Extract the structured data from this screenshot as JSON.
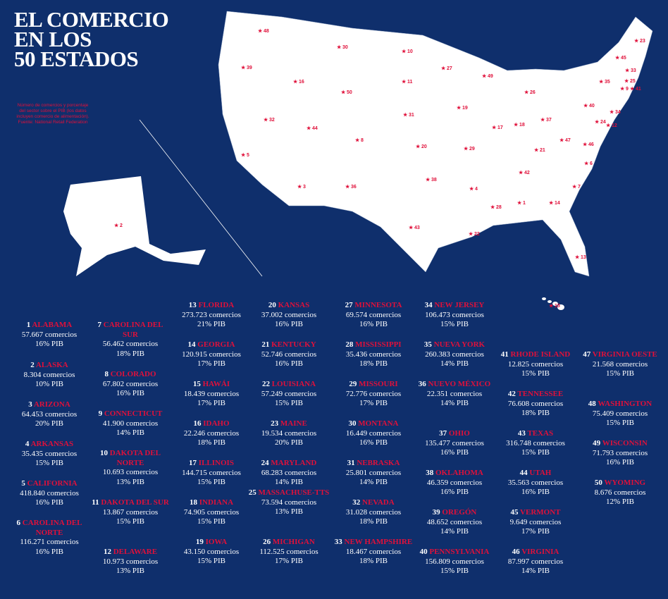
{
  "title_lines": [
    "EL COMERCIO",
    "EN LOS",
    "50 ESTADOS"
  ],
  "note": "Número de comercios y porcentaje del sector sobre el PIB (los datos incluyen comercio de alimentación). Fuente: National Retail Federation",
  "states": [
    {
      "rank": 1,
      "name": "ALABAMA",
      "businesses": "57.667 comercios",
      "gdp": "16% PIB"
    },
    {
      "rank": 2,
      "name": "ALASKA",
      "businesses": "8.304 comercios",
      "gdp": "10% PIB"
    },
    {
      "rank": 3,
      "name": "ARIZONA",
      "businesses": "64.453 comercios",
      "gdp": "20% PIB"
    },
    {
      "rank": 4,
      "name": "ARKANSAS",
      "businesses": "35.435 comercios",
      "gdp": "15% PIB"
    },
    {
      "rank": 5,
      "name": "CALIFORNIA",
      "businesses": "418.840 comercios",
      "gdp": "16% PIB"
    },
    {
      "rank": 6,
      "name": "CAROLINA DEL NORTE",
      "businesses": "116.271 comercios",
      "gdp": "16% PIB"
    },
    {
      "rank": 7,
      "name": "CAROLINA DEL SUR",
      "businesses": "56.462 comercios",
      "gdp": "18% PIB"
    },
    {
      "rank": 8,
      "name": "COLORADO",
      "businesses": "67.802 comercios",
      "gdp": "16% PIB"
    },
    {
      "rank": 9,
      "name": "CONNECTICUT",
      "businesses": "41.900 comercios",
      "gdp": "14% PIB"
    },
    {
      "rank": 10,
      "name": "DAKOTA DEL NORTE",
      "businesses": "10.693 comercios",
      "gdp": "13% PIB"
    },
    {
      "rank": 11,
      "name": "DAKOTA DEL SUR",
      "businesses": "13.867 comercios",
      "gdp": "15% PIB"
    },
    {
      "rank": 12,
      "name": "DELAWARE",
      "businesses": "10.973 comercios",
      "gdp": "13% PIB"
    },
    {
      "rank": 13,
      "name": "FLORIDA",
      "businesses": "273.723 comercios",
      "gdp": "21% PIB"
    },
    {
      "rank": 14,
      "name": "GEORGIA",
      "businesses": "120.915 comercios",
      "gdp": "17% PIB"
    },
    {
      "rank": 15,
      "name": "HAWÁI",
      "businesses": "18.439 comercios",
      "gdp": "17% PIB"
    },
    {
      "rank": 16,
      "name": "IDAHO",
      "businesses": "22.246 comercios",
      "gdp": "18% PIB"
    },
    {
      "rank": 17,
      "name": "ILLINOIS",
      "businesses": "144.715 comercios",
      "gdp": "15% PIB"
    },
    {
      "rank": 18,
      "name": "INDIANA",
      "businesses": "74.905 comercios",
      "gdp": "15% PIB"
    },
    {
      "rank": 19,
      "name": "IOWA",
      "businesses": "43.150 comercios",
      "gdp": "15% PIB"
    },
    {
      "rank": 20,
      "name": "KANSAS",
      "businesses": "37.002 comercios",
      "gdp": "16% PIB"
    },
    {
      "rank": 21,
      "name": "KENTUCKY",
      "businesses": "52.746 comercios",
      "gdp": "16% PIB"
    },
    {
      "rank": 22,
      "name": "LOUISIANA",
      "businesses": "57.249 comercios",
      "gdp": "15% PIB"
    },
    {
      "rank": 23,
      "name": "MAINE",
      "businesses": "19.534 comercios",
      "gdp": "20% PIB"
    },
    {
      "rank": 24,
      "name": "MARYLAND",
      "businesses": "68.283 comercios",
      "gdp": "14% PIB"
    },
    {
      "rank": 25,
      "name": "MASSACHUSE-TTS",
      "businesses": "73.594 comercios",
      "gdp": "13% PIB"
    },
    {
      "rank": 26,
      "name": "MICHIGAN",
      "businesses": "112.525 comercios",
      "gdp": "17% PIB"
    },
    {
      "rank": 27,
      "name": "MINNESOTA",
      "businesses": "69.574 comercios",
      "gdp": "16% PIB"
    },
    {
      "rank": 28,
      "name": "MISSISSIPPI",
      "businesses": "35.436 comercios",
      "gdp": "18% PIB"
    },
    {
      "rank": 29,
      "name": "MISSOURI",
      "businesses": "72.776 comercios",
      "gdp": "17% PIB"
    },
    {
      "rank": 30,
      "name": "MONTANA",
      "businesses": "16.449 comercios",
      "gdp": "16% PIB"
    },
    {
      "rank": 31,
      "name": "NEBRASKA",
      "businesses": "25.801 comercios",
      "gdp": "14% PIB"
    },
    {
      "rank": 32,
      "name": "NEVADA",
      "businesses": "31.028 comercios",
      "gdp": "18% PIB"
    },
    {
      "rank": 33,
      "name": "NEW HAMPSHIRE",
      "businesses": "18.467 comercios",
      "gdp": "18% PIB"
    },
    {
      "rank": 34,
      "name": "NEW JERSEY",
      "businesses": "106.473 comercios",
      "gdp": "15% PIB"
    },
    {
      "rank": 35,
      "name": "NUEVA YORK",
      "businesses": "260.383 comercios",
      "gdp": "14% PIB"
    },
    {
      "rank": 36,
      "name": "NUEVO MÉXICO",
      "businesses": "22.351 comercios",
      "gdp": "14% PIB"
    },
    {
      "rank": 37,
      "name": "OHIO",
      "businesses": "135.477 comercios",
      "gdp": "16% PIB"
    },
    {
      "rank": 38,
      "name": "OKLAHOMA",
      "businesses": "46.359 comercios",
      "gdp": "16% PIB"
    },
    {
      "rank": 39,
      "name": "OREGÓN",
      "businesses": "48.652 comercios",
      "gdp": "14% PIB"
    },
    {
      "rank": 40,
      "name": "PENNSYLVANIA",
      "businesses": "156.809 comercios",
      "gdp": "15% PIB"
    },
    {
      "rank": 41,
      "name": "RHODE ISLAND",
      "businesses": "12.825 comercios",
      "gdp": "15% PIB"
    },
    {
      "rank": 42,
      "name": "TENNESSEE",
      "businesses": "76.608 comercios",
      "gdp": "18% PIB"
    },
    {
      "rank": 43,
      "name": "TEXAS",
      "businesses": "316.748 comercios",
      "gdp": "15% PIB"
    },
    {
      "rank": 44,
      "name": "UTAH",
      "businesses": "35.563 comercios",
      "gdp": "16% PIB"
    },
    {
      "rank": 45,
      "name": "VERMONT",
      "businesses": "9.649 comercios",
      "gdp": "17% PIB"
    },
    {
      "rank": 46,
      "name": "VIRGINIA",
      "businesses": "87.997 comercios",
      "gdp": "14% PIB"
    },
    {
      "rank": 47,
      "name": "VIRGINIA OESTE",
      "businesses": "21.568 comercios",
      "gdp": "15% PIB"
    },
    {
      "rank": 48,
      "name": "WASHINGTON",
      "businesses": "75.409 comercios",
      "gdp": "15% PIB"
    },
    {
      "rank": 49,
      "name": "WISCONSIN",
      "businesses": "71.793 comercios",
      "gdp": "16% PIB"
    },
    {
      "rank": 50,
      "name": "WYOMING",
      "businesses": "8.676 comercios",
      "gdp": "12% PIB"
    }
  ]
}
